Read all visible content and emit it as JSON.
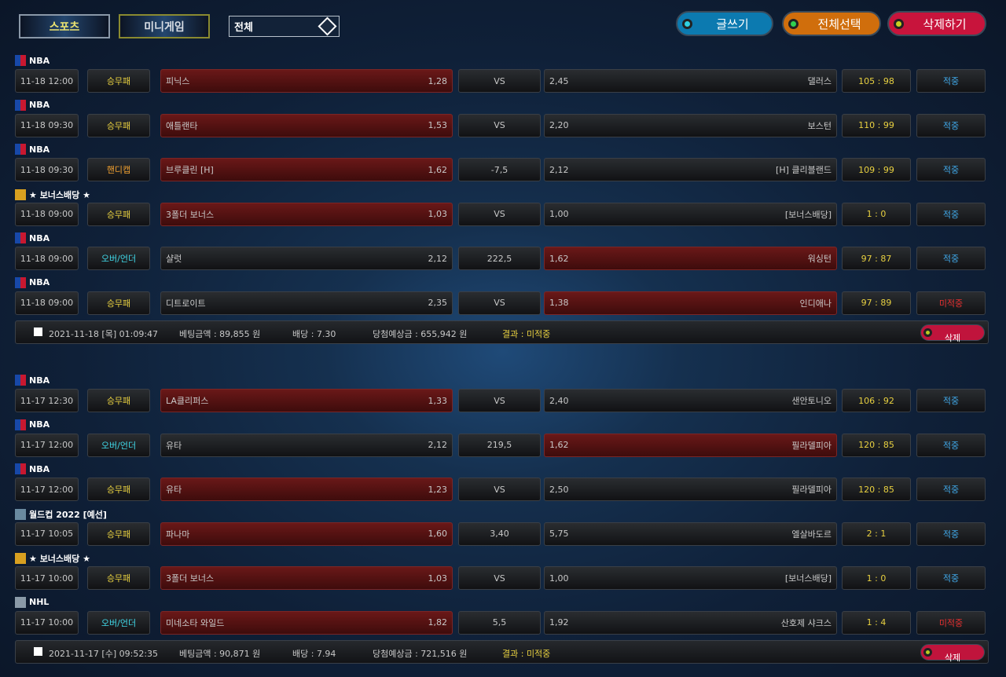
{
  "tabs": {
    "sports": "스포츠",
    "mini": "미니게임"
  },
  "filter": {
    "value": "전체"
  },
  "actions": {
    "write": "글쓰기",
    "select_all": "전체선택",
    "delete": "삭제하기"
  },
  "colors": {
    "type_win": "#e8d040",
    "type_handicap": "#f0a030",
    "type_ou": "#40d8e8",
    "hit": "#40a8e8",
    "miss": "#e83030",
    "score": "#e8d040"
  },
  "slips": [
    {
      "bets": [
        {
          "league": "NBA",
          "icon": "nba",
          "date": "11-18 12:00",
          "type": "승무패",
          "kind": "win",
          "home": "피닉스",
          "home_odds": "1,28",
          "mid": "VS",
          "away_odds": "2,45",
          "away": "댈러스",
          "score": "105 : 98",
          "result": "적중",
          "pick": "home"
        },
        {
          "league": "NBA",
          "icon": "nba",
          "date": "11-18 09:30",
          "type": "승무패",
          "kind": "win",
          "home": "애틀랜타",
          "home_odds": "1,53",
          "mid": "VS",
          "away_odds": "2,20",
          "away": "보스턴",
          "score": "110 : 99",
          "result": "적중",
          "pick": "home"
        },
        {
          "league": "NBA",
          "icon": "nba",
          "date": "11-18 09:30",
          "type": "핸디캡",
          "kind": "handicap",
          "home": "브루클린 [H]",
          "home_odds": "1,62",
          "mid": "-7,5",
          "away_odds": "2,12",
          "away": "[H] 클리블랜드",
          "score": "109 : 99",
          "result": "적중",
          "pick": "home"
        },
        {
          "league": "★ 보너스배당 ★",
          "icon": "bonus",
          "date": "11-18 09:00",
          "type": "승무패",
          "kind": "win",
          "home": "3폴더 보너스",
          "home_odds": "1,03",
          "mid": "VS",
          "away_odds": "1,00",
          "away": "[보너스배당]",
          "score": "1 : 0",
          "result": "적중",
          "pick": "home"
        },
        {
          "league": "NBA",
          "icon": "nba",
          "date": "11-18 09:00",
          "type": "오버/언더",
          "kind": "ou",
          "home": "샬럿",
          "home_odds": "2,12",
          "mid": "222,5",
          "away_odds": "1,62",
          "away": "워싱턴",
          "score": "97 : 87",
          "result": "적중",
          "pick": "away"
        },
        {
          "league": "NBA",
          "icon": "nba",
          "date": "11-18 09:00",
          "type": "승무패",
          "kind": "win",
          "home": "디트로이트",
          "home_odds": "2,35",
          "mid": "VS",
          "away_odds": "1,38",
          "away": "인디애나",
          "score": "97 : 89",
          "result": "미적중",
          "pick": "away"
        }
      ],
      "summary": {
        "datetime": "2021-11-18 [목] 01:09:47",
        "bet_amount": "베팅금액 : 89,855 원",
        "odds": "배당 : 7.30",
        "expected": "당첨예상금 : 655,942 원",
        "result": "결과 : 미적중",
        "delete": "삭제"
      }
    },
    {
      "bets": [
        {
          "league": "NBA",
          "icon": "nba",
          "date": "11-17 12:30",
          "type": "승무패",
          "kind": "win",
          "home": "LA클리퍼스",
          "home_odds": "1,33",
          "mid": "VS",
          "away_odds": "2,40",
          "away": "샌안토니오",
          "score": "106 : 92",
          "result": "적중",
          "pick": "home"
        },
        {
          "league": "NBA",
          "icon": "nba",
          "date": "11-17 12:00",
          "type": "오버/언더",
          "kind": "ou",
          "home": "유타",
          "home_odds": "2,12",
          "mid": "219,5",
          "away_odds": "1,62",
          "away": "필라델피아",
          "score": "120 : 85",
          "result": "적중",
          "pick": "away"
        },
        {
          "league": "NBA",
          "icon": "nba",
          "date": "11-17 12:00",
          "type": "승무패",
          "kind": "win",
          "home": "유타",
          "home_odds": "1,23",
          "mid": "VS",
          "away_odds": "2,50",
          "away": "필라델피아",
          "score": "120 : 85",
          "result": "적중",
          "pick": "home"
        },
        {
          "league": "월드컵 2022 [예선]",
          "icon": "worldcup",
          "date": "11-17 10:05",
          "type": "승무패",
          "kind": "win",
          "home": "파나마",
          "home_odds": "1,60",
          "mid": "3,40",
          "away_odds": "5,75",
          "away": "엘살바도르",
          "score": "2 : 1",
          "result": "적중",
          "pick": "home"
        },
        {
          "league": "★ 보너스배당 ★",
          "icon": "bonus",
          "date": "11-17 10:00",
          "type": "승무패",
          "kind": "win",
          "home": "3폴더 보너스",
          "home_odds": "1,03",
          "mid": "VS",
          "away_odds": "1,00",
          "away": "[보너스배당]",
          "score": "1 : 0",
          "result": "적중",
          "pick": "home"
        },
        {
          "league": "NHL",
          "icon": "nhl",
          "date": "11-17 10:00",
          "type": "오버/언더",
          "kind": "ou",
          "home": "미네소타 와일드",
          "home_odds": "1,82",
          "mid": "5,5",
          "away_odds": "1,92",
          "away": "산호제 샤크스",
          "score": "1 : 4",
          "result": "미적중",
          "pick": "home"
        }
      ],
      "summary": {
        "datetime": "2021-11-17 [수] 09:52:35",
        "bet_amount": "베팅금액 : 90,871 원",
        "odds": "배당 : 7.94",
        "expected": "당첨예상금 : 721,516 원",
        "result": "결과 : 미적중",
        "delete": "삭제"
      }
    }
  ]
}
